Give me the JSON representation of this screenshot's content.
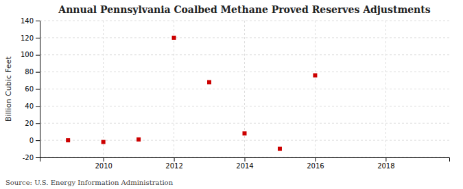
{
  "chart_data": {
    "type": "scatter",
    "title": "Annual Pennsylvania Coalbed Methane Proved Reserves Adjustments",
    "ylabel": "Billion Cubic Feet",
    "annotations": [
      "Source: U.S. Energy Information Administration"
    ],
    "x": [
      2009,
      2010,
      2011,
      2012,
      2013,
      2014,
      2015,
      2016
    ],
    "values": [
      0.0,
      -2.0,
      1.0,
      120.0,
      68.0,
      8.0,
      -10.0,
      76.0
    ],
    "color": "#cc0000",
    "marker": "square",
    "xlim": [
      2008.2,
      2019.8
    ],
    "xticks": [
      2010,
      2012,
      2014,
      2016,
      2018
    ],
    "ylim": [
      -20,
      140
    ],
    "yticks": [
      -20,
      0,
      20,
      40,
      60,
      80,
      100,
      120,
      140
    ],
    "grid": true
  }
}
